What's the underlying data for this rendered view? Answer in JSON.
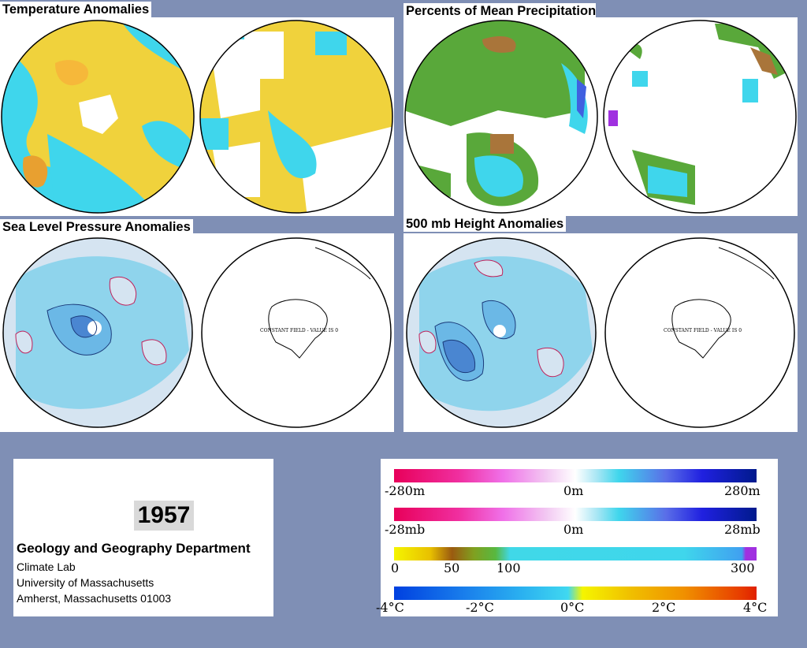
{
  "panels": {
    "temperature": {
      "title": "Temperature Anomalies"
    },
    "precipitation": {
      "title": "Percents of Mean Precipitation"
    },
    "slp": {
      "title": "Sea Level Pressure Anomalies",
      "south_label": "CONSTANT FIELD - VALUE IS 0"
    },
    "height": {
      "title": "500 mb Height Anomalies",
      "south_label": "CONSTANT FIELD - VALUE IS 0"
    }
  },
  "info": {
    "year": "1957",
    "department": "Geology and Geography Department",
    "line1": "Climate Lab",
    "line2": "University of Massachusetts",
    "line3": "Amherst, Massachusetts 01003"
  },
  "legend": {
    "height": {
      "min": "-280m",
      "mid": "0m",
      "max": "280m"
    },
    "pressure": {
      "min": "-28mb",
      "mid": "0m",
      "max": "28mb"
    },
    "precip": {
      "t0": "0",
      "t1": "50",
      "t2": "100",
      "t3": "300"
    },
    "temp": {
      "t0": "-4°C",
      "t1": "-2°C",
      "t2": "0°C",
      "t3": "2°C",
      "t4": "4°C"
    }
  },
  "colors": {
    "background": "#7f8fb5",
    "warm": "#f0d23c",
    "cool": "#3fd6ec",
    "green": "#59a83a",
    "contour_positive": "#c0205a",
    "contour_negative": "#1a3a7a"
  }
}
